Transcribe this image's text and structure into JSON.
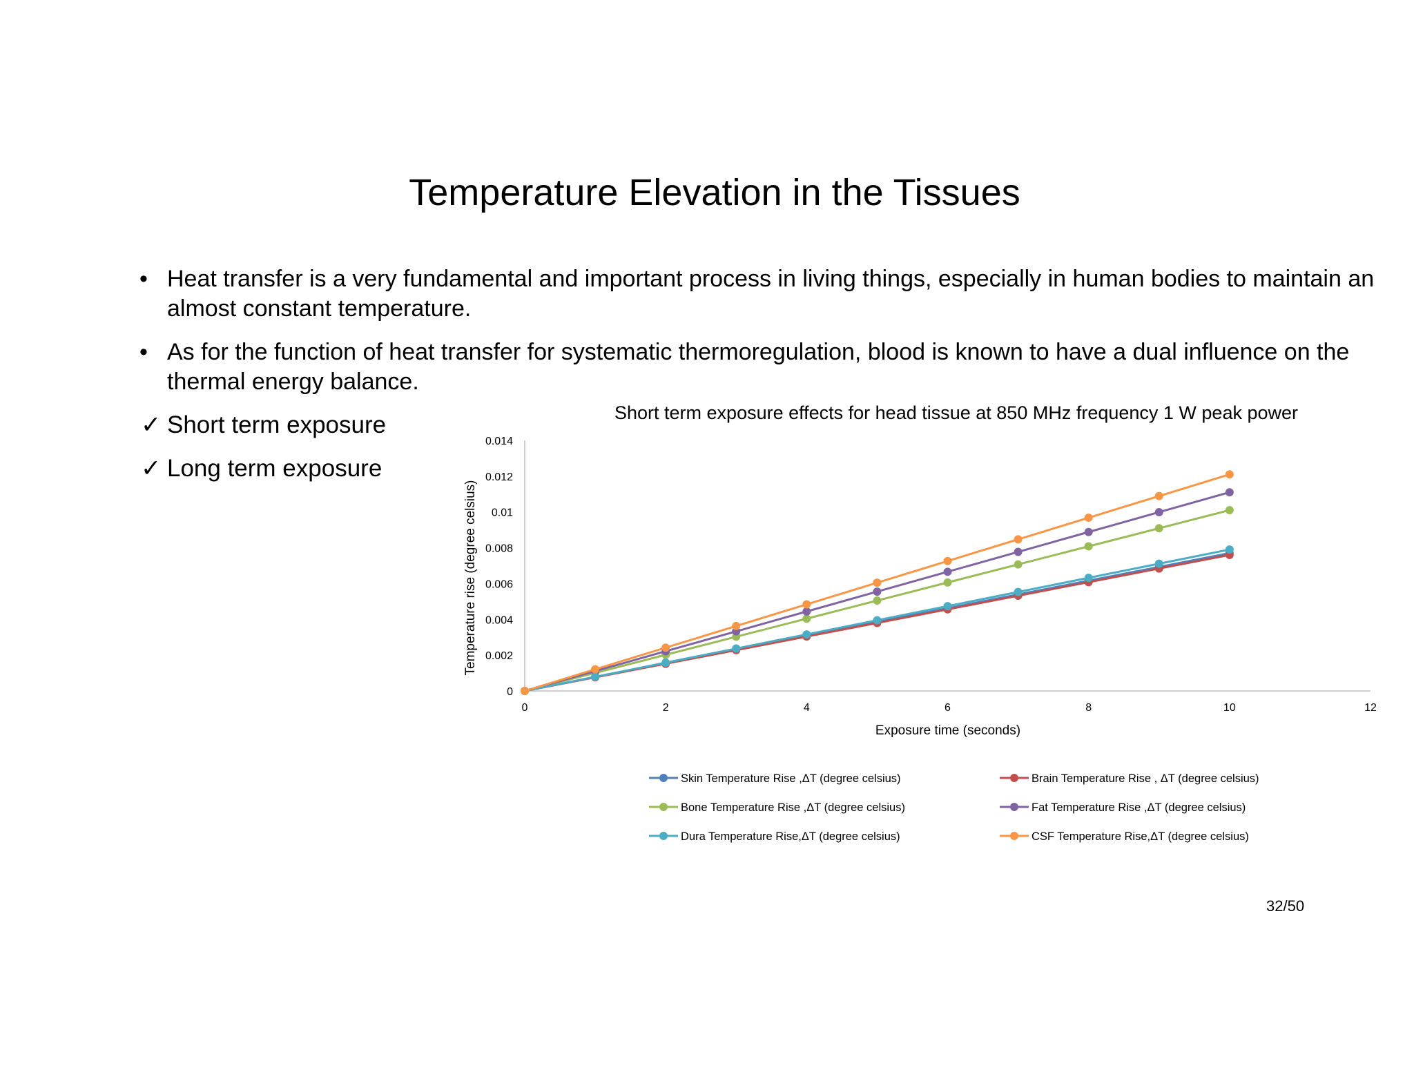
{
  "slide": {
    "title": "Temperature Elevation in the Tissues",
    "bullets": [
      "Heat transfer is a very fundamental and important process in living things, especially in human bodies to maintain an almost constant temperature.",
      "As for the function of heat transfer for systematic thermoregulation, blood is known to have a dual influence on the thermal energy balance."
    ],
    "checks": [
      "Short term exposure",
      "Long term exposure"
    ],
    "bullet_symbol": "•",
    "check_symbol": "✓",
    "page_number": "32/50"
  },
  "chart_data": {
    "type": "line",
    "title": "Short term exposure effects for head tissue at 850 MHz frequency 1 W peak power",
    "xlabel": "Exposure time (seconds)",
    "ylabel": "Temperature rise (degree celsius)",
    "x": [
      0,
      1,
      2,
      3,
      4,
      5,
      6,
      7,
      8,
      9,
      10
    ],
    "xlim": [
      0,
      12
    ],
    "ylim": [
      0,
      0.014
    ],
    "xticks": [
      "0",
      "2",
      "4",
      "6",
      "8",
      "10",
      "12"
    ],
    "yticks": [
      "0",
      "0.002",
      "0.004",
      "0.006",
      "0.008",
      "0.01",
      "0.012",
      "0.014"
    ],
    "grid": false,
    "legend_position": "bottom",
    "series": [
      {
        "name": "Skin Temperature Rise ,ΔT (degree celsius)",
        "color": "#4F81BD",
        "values": [
          0,
          0.00077,
          0.00154,
          0.00231,
          0.00308,
          0.00385,
          0.00462,
          0.00539,
          0.00616,
          0.00693,
          0.0077
        ]
      },
      {
        "name": "Brain Temperature Rise , ΔT (degree celsius)",
        "color": "#C0504D",
        "values": [
          0,
          0.00076,
          0.00152,
          0.00228,
          0.00304,
          0.0038,
          0.00456,
          0.00532,
          0.00608,
          0.00684,
          0.0076
        ]
      },
      {
        "name": "Bone Temperature Rise ,ΔT (degree celsius)",
        "color": "#9BBB59",
        "values": [
          0,
          0.00101,
          0.00202,
          0.00303,
          0.00404,
          0.00505,
          0.00606,
          0.00707,
          0.00808,
          0.00909,
          0.0101
        ]
      },
      {
        "name": "Fat Temperature Rise ,ΔT (degree celsius)",
        "color": "#8064A2",
        "values": [
          0,
          0.00111,
          0.00222,
          0.00333,
          0.00444,
          0.00555,
          0.00666,
          0.00777,
          0.00888,
          0.00999,
          0.0111
        ]
      },
      {
        "name": "Dura Temperature Rise,ΔT (degree celsius)",
        "color": "#4BACC6",
        "values": [
          0,
          0.00079,
          0.00158,
          0.00237,
          0.00316,
          0.00395,
          0.00474,
          0.00553,
          0.00632,
          0.00711,
          0.0079
        ]
      },
      {
        "name": "CSF Temperature Rise,ΔT (degree celsius)",
        "color": "#F79646",
        "values": [
          0,
          0.00121,
          0.00242,
          0.00363,
          0.00484,
          0.00605,
          0.00726,
          0.00847,
          0.00968,
          0.01089,
          0.0121
        ]
      }
    ]
  }
}
